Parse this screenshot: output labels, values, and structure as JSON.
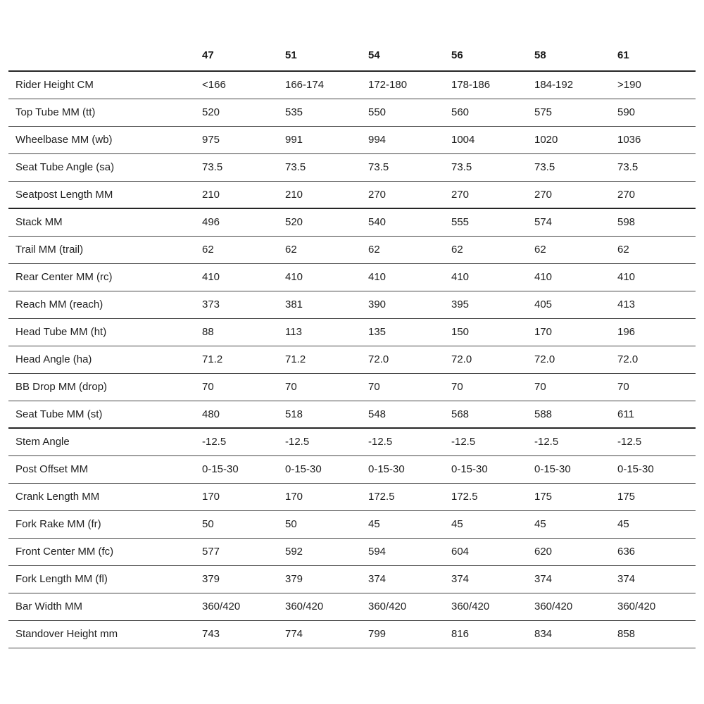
{
  "table": {
    "title": "bike-geometry-chart",
    "header": [
      "",
      "47",
      "51",
      "54",
      "56",
      "58",
      "61"
    ],
    "rows": [
      {
        "label": "Rider Height CM",
        "values": [
          "<166",
          "166-174",
          "172-180",
          "178-186",
          "184-192",
          ">190"
        ],
        "group_end": false
      },
      {
        "label": "Top Tube MM (tt)",
        "values": [
          "520",
          "535",
          "550",
          "560",
          "575",
          "590"
        ],
        "group_end": false
      },
      {
        "label": "Wheelbase MM (wb)",
        "values": [
          "975",
          "991",
          "994",
          "1004",
          "1020",
          "1036"
        ],
        "group_end": false
      },
      {
        "label": "Seat Tube Angle (sa)",
        "values": [
          "73.5",
          "73.5",
          "73.5",
          "73.5",
          "73.5",
          "73.5"
        ],
        "group_end": false
      },
      {
        "label": "Seatpost Length MM",
        "values": [
          "210",
          "210",
          "270",
          "270",
          "270",
          "270"
        ],
        "group_end": true
      },
      {
        "label": "Stack MM",
        "values": [
          "496",
          "520",
          "540",
          "555",
          "574",
          "598"
        ],
        "group_end": false
      },
      {
        "label": "Trail MM (trail)",
        "values": [
          "62",
          "62",
          "62",
          "62",
          "62",
          "62"
        ],
        "group_end": false
      },
      {
        "label": "Rear Center MM (rc)",
        "values": [
          "410",
          "410",
          "410",
          "410",
          "410",
          "410"
        ],
        "group_end": false
      },
      {
        "label": "Reach MM (reach)",
        "values": [
          "373",
          "381",
          "390",
          "395",
          "405",
          "413"
        ],
        "group_end": false
      },
      {
        "label": "Head Tube MM (ht)",
        "values": [
          "88",
          "113",
          "135",
          "150",
          "170",
          "196"
        ],
        "group_end": false
      },
      {
        "label": "Head Angle (ha)",
        "values": [
          "71.2",
          "71.2",
          "72.0",
          "72.0",
          "72.0",
          "72.0"
        ],
        "group_end": false
      },
      {
        "label": "BB Drop MM (drop)",
        "values": [
          "70",
          "70",
          "70",
          "70",
          "70",
          "70"
        ],
        "group_end": false
      },
      {
        "label": "Seat Tube MM (st)",
        "values": [
          "480",
          "518",
          "548",
          "568",
          "588",
          "611"
        ],
        "group_end": true
      },
      {
        "label": "Stem Angle",
        "values": [
          "-12.5",
          "-12.5",
          "-12.5",
          "-12.5",
          "-12.5",
          "-12.5"
        ],
        "group_end": false
      },
      {
        "label": "Post Offset MM",
        "values": [
          "0-15-30",
          "0-15-30",
          "0-15-30",
          "0-15-30",
          "0-15-30",
          "0-15-30"
        ],
        "group_end": false
      },
      {
        "label": "Crank Length MM",
        "values": [
          "170",
          "170",
          "172.5",
          "172.5",
          "175",
          "175"
        ],
        "group_end": false
      },
      {
        "label": "Fork Rake MM (fr)",
        "values": [
          "50",
          "50",
          "45",
          "45",
          "45",
          "45"
        ],
        "group_end": false
      },
      {
        "label": "Front Center MM (fc)",
        "values": [
          "577",
          "592",
          "594",
          "604",
          "620",
          "636"
        ],
        "group_end": false
      },
      {
        "label": "Fork Length MM (fl)",
        "values": [
          "379",
          "379",
          "374",
          "374",
          "374",
          "374"
        ],
        "group_end": false
      },
      {
        "label": "Bar Width MM",
        "values": [
          "360/420",
          "360/420",
          "360/420",
          "360/420",
          "360/420",
          "360/420"
        ],
        "group_end": false
      },
      {
        "label": "Standover Height mm",
        "values": [
          "743",
          "774",
          "799",
          "816",
          "834",
          "858"
        ],
        "group_end": false
      }
    ],
    "colors": {
      "text": "#1f1f1f",
      "thin_divider": "#454545",
      "thick_divider": "#262626",
      "background": "#ffffff"
    }
  }
}
